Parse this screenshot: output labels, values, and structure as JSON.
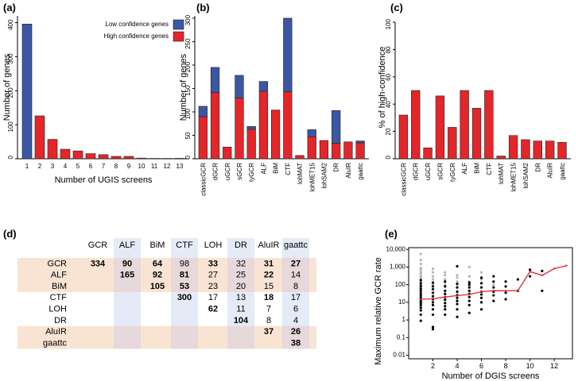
{
  "colors": {
    "low": "#3b57a4",
    "high": "#e3262a",
    "line": "#e3262a",
    "shade_peach": "#f9e4d3",
    "shade_blue": "#dfe6f5",
    "gray_point": "#b5b5b5"
  },
  "chart_data": [
    {
      "panel": "(a)",
      "type": "bar",
      "stacked": true,
      "categories": [
        "1",
        "2",
        "3",
        "4",
        "5",
        "6",
        "7",
        "8",
        "9",
        "10",
        "11",
        "12",
        "13"
      ],
      "series": [
        {
          "name": "High confidence genes",
          "values": [
            0,
            126,
            57,
            28,
            23,
            15,
            12,
            7,
            7,
            2,
            1,
            1,
            0
          ]
        },
        {
          "name": "Low confidence genes",
          "values": [
            396,
            0,
            0,
            0,
            0,
            0,
            0,
            0,
            0,
            0,
            0,
            0,
            0
          ]
        }
      ],
      "xlabel": "Number of UGIS screens",
      "ylabel": "Number of genes",
      "ylim": [
        0,
        420
      ],
      "yticks": [
        0,
        100,
        200,
        300,
        400
      ],
      "legend": [
        "Low confidence genes",
        "High confidence genes"
      ]
    },
    {
      "panel": "(b)",
      "type": "bar",
      "stacked": true,
      "categories": [
        "classicGCR",
        "dGCR",
        "uGCR",
        "sGCR",
        "tyGCR",
        "ALF",
        "BiM",
        "CTF",
        "lohMAT",
        "lohMET15",
        "lohSAM2",
        "DR",
        "AluIR",
        "gaattc"
      ],
      "series": [
        {
          "name": "High confidence genes",
          "values": [
            90,
            141,
            25,
            130,
            63,
            144,
            104,
            143,
            7,
            47,
            39,
            33,
            36,
            34
          ]
        },
        {
          "name": "Low confidence genes",
          "values": [
            22,
            54,
            0,
            48,
            6,
            21,
            0,
            157,
            0,
            15,
            0,
            70,
            0,
            4
          ]
        }
      ],
      "ylabel": "Number of genes",
      "ylim": [
        0,
        305
      ],
      "yticks": [
        0,
        50,
        100,
        150,
        200,
        250,
        300
      ]
    },
    {
      "panel": "(c)",
      "type": "bar",
      "categories": [
        "classicGCR",
        "dGCR",
        "uGCR",
        "sGCR",
        "tyGCR",
        "ALF",
        "BiM",
        "CTF",
        "lohMAT",
        "lohMET15",
        "lohSAM2",
        "DR",
        "AluIR",
        "gaattc"
      ],
      "values": [
        32,
        50,
        8,
        46,
        23,
        50,
        37,
        50,
        2,
        17,
        14,
        13,
        13,
        12
      ],
      "ylabel": "% of high-confidence",
      "ylim": [
        0,
        100
      ],
      "yticks": [
        0,
        20,
        40,
        60,
        80,
        100
      ]
    },
    {
      "panel": "(d)",
      "type": "table",
      "columns": [
        "GCR",
        "ALF",
        "BiM",
        "CTF",
        "LOH",
        "DR",
        "AluIR",
        "gaattc"
      ],
      "rows": [
        {
          "label": "GCR",
          "cells": [
            "334",
            "90",
            "64",
            "98",
            "33",
            "32",
            "31",
            "27"
          ],
          "bold": [
            true,
            true,
            true,
            false,
            true,
            false,
            true,
            true
          ]
        },
        {
          "label": "ALF",
          "cells": [
            "",
            "165",
            "92",
            "81",
            "27",
            "25",
            "22",
            "14"
          ],
          "bold": [
            false,
            true,
            true,
            true,
            false,
            false,
            true,
            false
          ]
        },
        {
          "label": "BiM",
          "cells": [
            "",
            "",
            "105",
            "53",
            "23",
            "20",
            "15",
            "8"
          ],
          "bold": [
            false,
            false,
            true,
            true,
            false,
            false,
            false,
            false
          ]
        },
        {
          "label": "CTF",
          "cells": [
            "",
            "",
            "",
            "300",
            "17",
            "13",
            "18",
            "17"
          ],
          "bold": [
            false,
            false,
            false,
            true,
            false,
            false,
            true,
            false
          ]
        },
        {
          "label": "LOH",
          "cells": [
            "",
            "",
            "",
            "",
            "62",
            "11",
            "7",
            "6"
          ],
          "bold": [
            false,
            false,
            false,
            false,
            true,
            false,
            false,
            false
          ]
        },
        {
          "label": "DR",
          "cells": [
            "",
            "",
            "",
            "",
            "",
            "104",
            "8",
            "4"
          ],
          "bold": [
            false,
            false,
            false,
            false,
            false,
            true,
            false,
            false
          ]
        },
        {
          "label": "AluIR",
          "cells": [
            "",
            "",
            "",
            "",
            "",
            "",
            "37",
            "26"
          ],
          "bold": [
            false,
            false,
            false,
            false,
            false,
            false,
            true,
            true
          ]
        },
        {
          "label": "gaattc",
          "cells": [
            "",
            "",
            "",
            "",
            "",
            "",
            "",
            "38"
          ],
          "bold": [
            false,
            false,
            false,
            false,
            false,
            false,
            false,
            true
          ]
        }
      ]
    },
    {
      "panel": "(e)",
      "type": "scatter",
      "xlabel": "Number of DGIS screens",
      "ylabel": "Maximum relative GCR rate",
      "xlim": [
        0,
        13.5
      ],
      "ylim_log10": [
        -2.2,
        4.1
      ],
      "xticks": [
        2,
        4,
        6,
        8,
        10,
        12
      ],
      "ytick_labels": [
        "0.01",
        "0.1",
        "1",
        "10",
        "100",
        "1,000",
        "10,000"
      ],
      "ytick_values": [
        0.01,
        0.1,
        1,
        10,
        100,
        1000,
        10000
      ],
      "line": {
        "x": [
          1,
          2,
          3,
          4,
          5,
          6,
          7,
          8,
          9,
          10,
          11,
          12,
          13
        ],
        "y": [
          15,
          16,
          20,
          24,
          28,
          40,
          46,
          45,
          46,
          550,
          340,
          820,
          1200
        ]
      },
      "black_points": [
        [
          1,
          0.9
        ],
        [
          1,
          2
        ],
        [
          1,
          3.5
        ],
        [
          1,
          5
        ],
        [
          1,
          7
        ],
        [
          1,
          9
        ],
        [
          1,
          11
        ],
        [
          1,
          14
        ],
        [
          1,
          18
        ],
        [
          1,
          24
        ],
        [
          1,
          32
        ],
        [
          1,
          45
        ],
        [
          1,
          60
        ],
        [
          1,
          85
        ],
        [
          1,
          120
        ],
        [
          1,
          180
        ],
        [
          2,
          0.3
        ],
        [
          2,
          0.4
        ],
        [
          2,
          2
        ],
        [
          2,
          4
        ],
        [
          2,
          7
        ],
        [
          2,
          10
        ],
        [
          2,
          15
        ],
        [
          2,
          22
        ],
        [
          2,
          35
        ],
        [
          2,
          55
        ],
        [
          2,
          80
        ],
        [
          2,
          130
        ],
        [
          3,
          2
        ],
        [
          3,
          4
        ],
        [
          3,
          6
        ],
        [
          3,
          9
        ],
        [
          3,
          14
        ],
        [
          3,
          20
        ],
        [
          3,
          30
        ],
        [
          3,
          45
        ],
        [
          3,
          80
        ],
        [
          3,
          150
        ],
        [
          4,
          1.5
        ],
        [
          4,
          4
        ],
        [
          4,
          8
        ],
        [
          4,
          12
        ],
        [
          4,
          18
        ],
        [
          4,
          26
        ],
        [
          4,
          40
        ],
        [
          4,
          70
        ],
        [
          4,
          110
        ],
        [
          4,
          1100
        ],
        [
          5,
          2.5
        ],
        [
          5,
          7
        ],
        [
          5,
          12
        ],
        [
          5,
          20
        ],
        [
          5,
          30
        ],
        [
          5,
          45
        ],
        [
          5,
          70
        ],
        [
          5,
          100
        ],
        [
          5,
          130
        ],
        [
          6,
          4
        ],
        [
          6,
          10
        ],
        [
          6,
          18
        ],
        [
          6,
          28
        ],
        [
          6,
          40
        ],
        [
          6,
          70
        ],
        [
          6,
          120
        ],
        [
          6,
          250
        ],
        [
          7,
          12
        ],
        [
          7,
          25
        ],
        [
          7,
          40
        ],
        [
          7,
          70
        ],
        [
          7,
          150
        ],
        [
          7,
          300
        ],
        [
          8,
          15
        ],
        [
          8,
          35
        ],
        [
          8,
          80
        ],
        [
          8,
          150
        ],
        [
          9,
          45
        ],
        [
          9,
          200
        ],
        [
          10,
          300
        ],
        [
          10,
          700
        ],
        [
          11,
          45
        ],
        [
          11,
          600
        ]
      ],
      "gray_points": [
        [
          1,
          40
        ],
        [
          1,
          70
        ],
        [
          1,
          100
        ],
        [
          1,
          150
        ],
        [
          1,
          200
        ],
        [
          1,
          250
        ],
        [
          1,
          300
        ],
        [
          1,
          400
        ],
        [
          1,
          500
        ],
        [
          1,
          700
        ],
        [
          1,
          900
        ],
        [
          1,
          1500
        ],
        [
          1,
          2500
        ],
        [
          1,
          5500
        ],
        [
          2,
          100
        ],
        [
          2,
          200
        ],
        [
          2,
          300
        ],
        [
          2,
          500
        ],
        [
          2,
          800
        ],
        [
          3,
          100
        ],
        [
          3,
          200
        ],
        [
          3,
          350
        ],
        [
          3,
          500
        ],
        [
          4,
          150
        ],
        [
          4,
          250
        ],
        [
          4,
          350
        ],
        [
          5,
          150
        ],
        [
          5,
          300
        ],
        [
          5,
          1000
        ],
        [
          6,
          200
        ],
        [
          6,
          500
        ],
        [
          7,
          100
        ]
      ]
    }
  ]
}
